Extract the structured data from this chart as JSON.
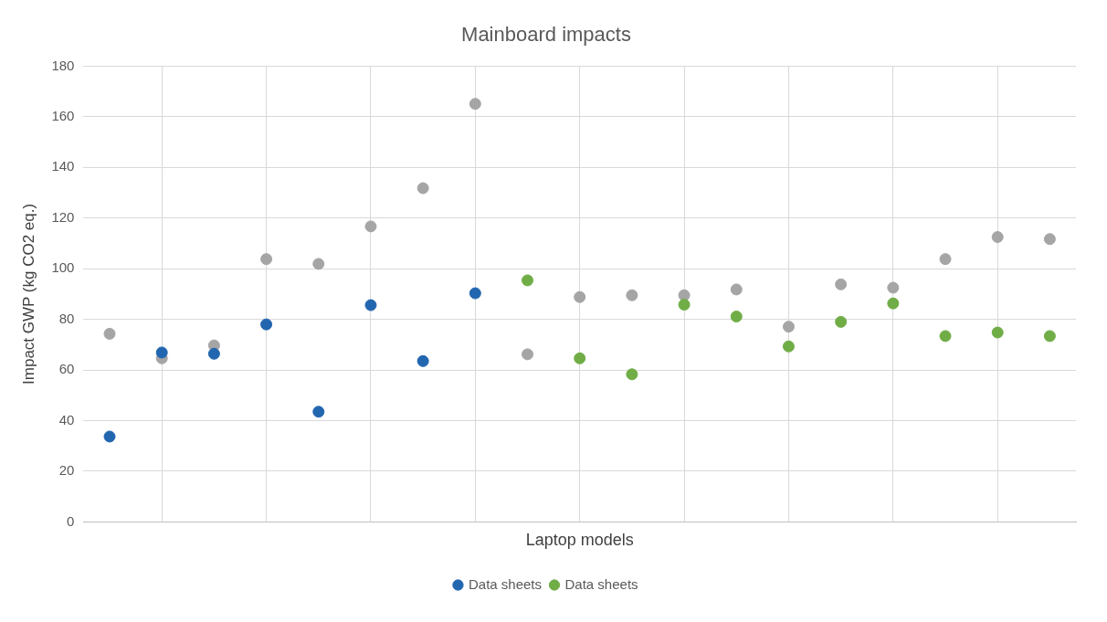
{
  "chart_data": {
    "type": "scatter",
    "title": "Mainboard impacts",
    "xlabel": "Laptop models",
    "ylabel": "Impact GWP (kg CO2 eq.)",
    "categories": [
      null,
      null,
      null,
      null,
      null,
      null,
      null,
      null,
      null,
      null,
      null,
      null,
      null,
      null,
      null,
      null,
      null,
      null,
      null
    ],
    "ylim": [
      0,
      180
    ],
    "yticks": [
      0,
      20,
      40,
      60,
      80,
      100,
      120,
      140,
      160,
      180
    ],
    "tick_labels": "y",
    "grid": true,
    "legend": "bottom",
    "marker": "circle",
    "series": [
      {
        "name": "Data sheets",
        "color": "#2266b0",
        "values": [
          33.7,
          66.9,
          66.4,
          78,
          43.5,
          85.6,
          63.5,
          90.3,
          null,
          null,
          null,
          null,
          null,
          null,
          null,
          null,
          null,
          null,
          null
        ]
      },
      {
        "name": "Data sheets",
        "color": "#70ad47",
        "values": [
          null,
          null,
          null,
          null,
          null,
          null,
          null,
          null,
          95.4,
          64.6,
          58.3,
          85.8,
          81.1,
          69.3,
          79,
          86.3,
          73.4,
          74.8,
          73.4
        ]
      },
      {
        "color": "#a5a5a5",
        "values": [
          74.3,
          64.6,
          69.7,
          103.8,
          101.9,
          116.7,
          131.8,
          165.1,
          66.2,
          88.8,
          89.5,
          89.5,
          91.8,
          77.1,
          93.8,
          92.5,
          103.8,
          112.5,
          111.7
        ]
      }
    ]
  }
}
